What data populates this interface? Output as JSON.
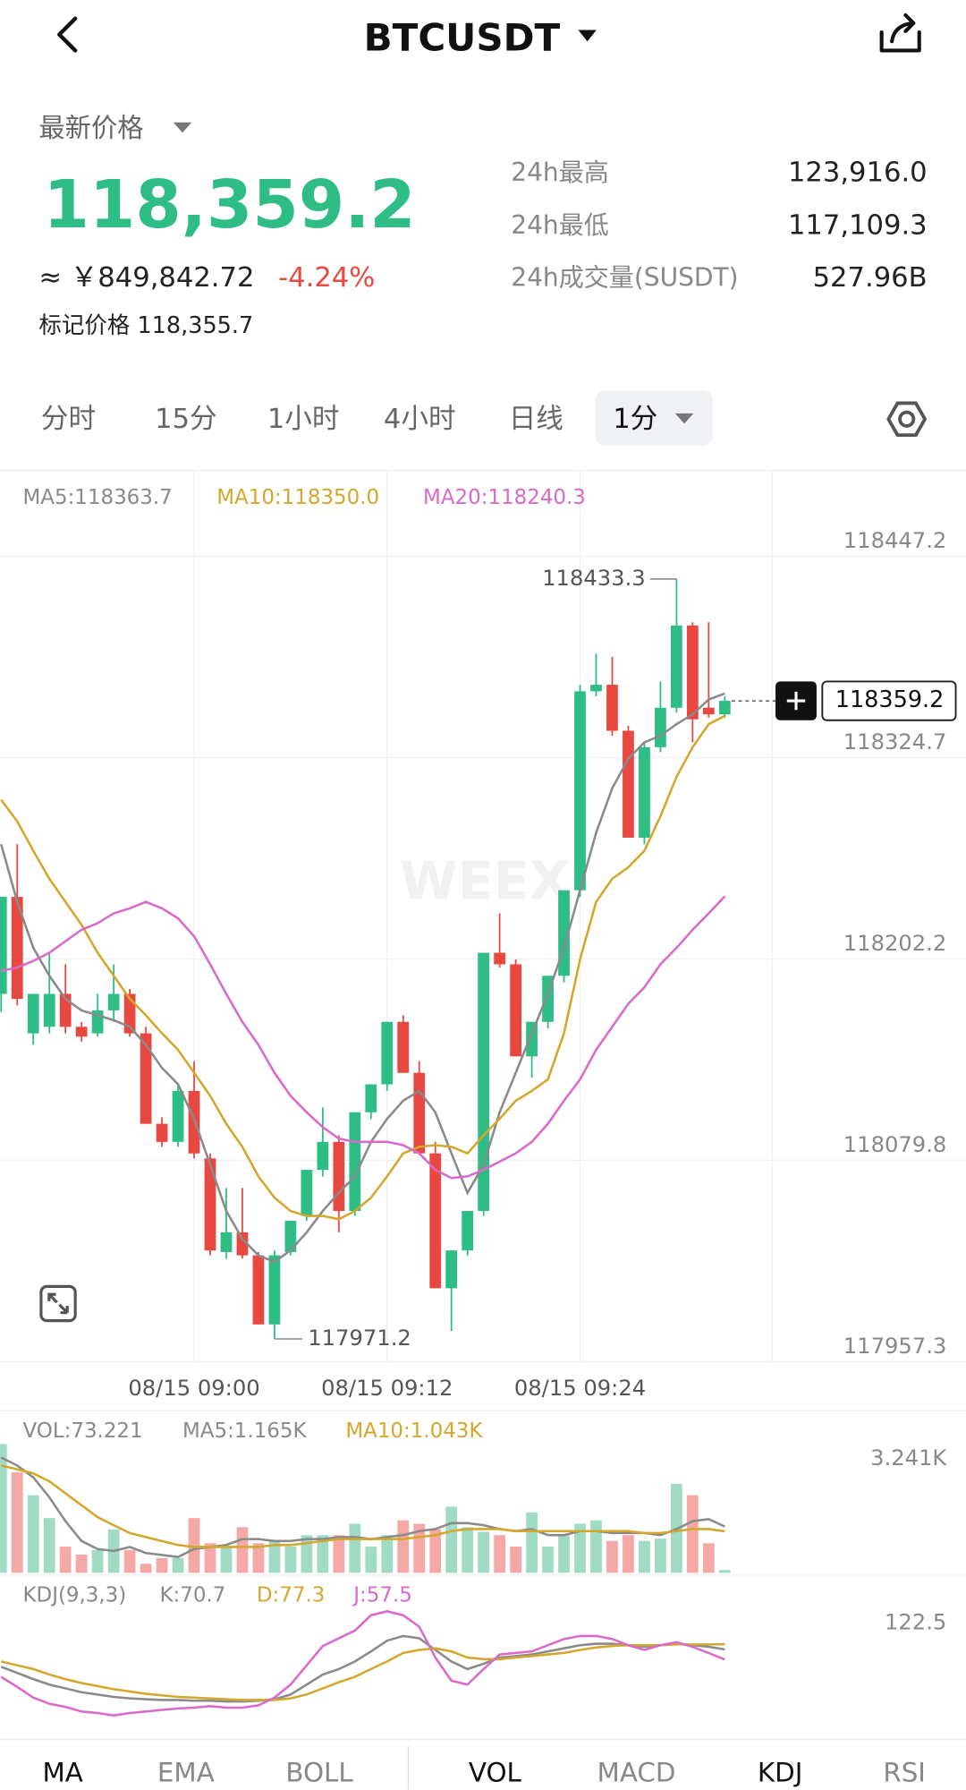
{
  "header": {
    "title": "BTCUSDT"
  },
  "price_info": {
    "label": "最新价格",
    "last": "118,359.2",
    "cny": "≈ ￥849,842.72",
    "change": "-4.24%",
    "mark_price": "标记价格 118,355.7"
  },
  "stats": [
    {
      "label": "24h最高",
      "value": "123,916.0"
    },
    {
      "label": "24h最低",
      "value": "117,109.3"
    },
    {
      "label": "24h成交量(SUSDT)",
      "value": "527.96B"
    }
  ],
  "interval_tabs": [
    "分时",
    "15分",
    "1小时",
    "4小时",
    "日线",
    "1分"
  ],
  "watermark": "WEEX",
  "chart_data": [
    {
      "type": "candlestick",
      "categories": [
        null,
        null,
        null,
        null,
        null,
        null,
        null,
        null,
        null,
        null,
        null,
        null,
        "08/15 09:00",
        null,
        null,
        null,
        null,
        null,
        null,
        null,
        null,
        null,
        null,
        null,
        "08/15 09:12",
        null,
        null,
        null,
        null,
        null,
        null,
        null,
        null,
        null,
        null,
        null,
        "08/15 09:24",
        null,
        null,
        null,
        null,
        null,
        null,
        null,
        null,
        null
      ],
      "open": [
        118181,
        118240,
        118157,
        118161,
        118181,
        118161,
        118157,
        118171,
        118181,
        118157,
        118102,
        118091,
        118122,
        118081,
        118024,
        118036,
        118022,
        117980,
        118024,
        118046,
        118074,
        118091,
        118049,
        118109,
        118126,
        118164,
        118133,
        118084,
        118002,
        118025,
        118049,
        118206,
        118199,
        118143,
        118164,
        118192,
        118244,
        118365,
        118369,
        118341,
        118276,
        118331,
        118355,
        118405,
        118355,
        118351
      ],
      "high": [
        118240,
        118272,
        118181,
        118206,
        118199,
        118164,
        118181,
        118199,
        118184,
        118161,
        118106,
        118126,
        118140,
        118084,
        118063,
        118063,
        118024,
        118025,
        118043,
        118074,
        118112,
        118095,
        118109,
        118126,
        118164,
        118168,
        118140,
        118091,
        118025,
        118049,
        118206,
        118230,
        118202,
        118164,
        118192,
        118244,
        118369,
        118388,
        118386,
        118344,
        118334,
        118371,
        118433.3,
        118407,
        118407,
        118362
      ],
      "low": [
        118170,
        118174,
        118150,
        118157,
        118157,
        118152,
        118155,
        118164,
        118155,
        118102,
        118088,
        118088,
        118081,
        118022,
        118020,
        118020,
        117980,
        117971.2,
        118022,
        118043,
        118070,
        118036,
        118046,
        118105,
        118122,
        118133,
        118084,
        118002,
        117976,
        118022,
        118046,
        118197,
        118143,
        118130,
        118160,
        118188,
        118240,
        118362,
        118338,
        118276,
        118272,
        118328,
        118352,
        118334,
        118349,
        118349
      ],
      "close": [
        118240,
        118178,
        118181,
        118181,
        118161,
        118155,
        118171,
        118181,
        118157,
        118102,
        118091,
        118122,
        118084,
        118025,
        118036,
        118022,
        117980,
        118022,
        118043,
        118074,
        118091,
        118049,
        118109,
        118126,
        118164,
        118133,
        118084,
        118002,
        118025,
        118049,
        118206,
        118199,
        118143,
        118164,
        118192,
        118244,
        118365,
        118369,
        118341,
        118276,
        118331,
        118355,
        118405,
        118348,
        118351,
        118359.2
      ],
      "up_color": "#2ebd85",
      "down_color": "#e8483f",
      "series": [
        {
          "label": "MA5:118363.7",
          "color": "#8a8a8a",
          "values": [
            118272,
            118237,
            118209,
            118192,
            118178,
            118171,
            118168,
            118165,
            118161,
            118150,
            118136,
            118126,
            118105,
            118077,
            118049,
            118032,
            118022,
            118018,
            118025,
            118036,
            118049,
            118060,
            118070,
            118091,
            118105,
            118116,
            118122,
            118109,
            118084,
            118060,
            118077,
            118109,
            118133,
            118157,
            118181,
            118209,
            118244,
            118279,
            118306,
            118324,
            118334,
            118338,
            118345,
            118351,
            118360,
            118363.7
          ]
        },
        {
          "label": "MA10:118350.0",
          "color": "#d4a72c",
          "values": [
            118299,
            118286,
            118268,
            118251,
            118237,
            118223,
            118206,
            118192,
            118178,
            118168,
            118157,
            118147,
            118133,
            118119,
            118102,
            118088,
            118070,
            118057,
            118049,
            118046,
            118046,
            118044,
            118049,
            118057,
            118070,
            118084,
            118088,
            118089,
            118088,
            118084,
            118095,
            118105,
            118116,
            118122,
            118129,
            118157,
            118202,
            118237,
            118251,
            118258,
            118268,
            118289,
            118313,
            118331,
            118345,
            118350.0
          ]
        },
        {
          "label": "MA20:118240.3",
          "color": "#d96acb",
          "values": [
            118195,
            118197,
            118201,
            118206,
            118213,
            118220,
            118224,
            118230,
            118233,
            118237,
            118233,
            118227,
            118216,
            118199,
            118181,
            118164,
            118150,
            118133,
            118119,
            118109,
            118100,
            118093,
            118091,
            118091,
            118091,
            118089,
            118084,
            118074,
            118069,
            118070,
            118074,
            118079,
            118084,
            118091,
            118102,
            118116,
            118129,
            118147,
            118161,
            118175,
            118185,
            118199,
            118209,
            118220,
            118230,
            118240.3
          ]
        }
      ],
      "ylim": [
        117957.3,
        118499.3
      ],
      "yticks": [
        117957.3,
        118079.8,
        118202.2,
        118324.7,
        118447.2
      ],
      "grid": true
    },
    {
      "type": "bar",
      "values": [
        3241,
        2526,
        1952,
        1378,
        660,
        459,
        574,
        1091,
        574,
        230,
        373,
        373,
        1378,
        746,
        660,
        1148,
        746,
        804,
        660,
        947,
        947,
        947,
        1234,
        660,
        947,
        1320,
        1234,
        1091,
        1665,
        1148,
        1033,
        947,
        660,
        1521,
        660,
        947,
        1234,
        1320,
        804,
        947,
        804,
        861,
        2239,
        1952,
        746,
        73.221
      ],
      "up_color": "#9fdcc3",
      "down_color": "#f4a9a6",
      "legend": "VOL:73.221",
      "series": [
        {
          "label": "MA5:1.165K",
          "color": "#8a8a8a",
          "values": [
            2900,
            2700,
            2400,
            1900,
            1300,
            800,
            600,
            550,
            650,
            500,
            450,
            400,
            600,
            650,
            700,
            850,
            850,
            800,
            800,
            850,
            850,
            900,
            900,
            850,
            900,
            950,
            1050,
            1100,
            1250,
            1250,
            1200,
            1100,
            1050,
            1100,
            950,
            950,
            1050,
            1050,
            1000,
            1000,
            1000,
            950,
            1100,
            1300,
            1350,
            1165
          ]
        },
        {
          "label": "MA10:1.043K",
          "color": "#d4a72c",
          "values": [
            2700,
            2600,
            2500,
            2300,
            2000,
            1700,
            1400,
            1200,
            1000,
            900,
            800,
            700,
            650,
            650,
            650,
            650,
            650,
            700,
            700,
            750,
            800,
            850,
            850,
            850,
            850,
            850,
            900,
            950,
            1050,
            1100,
            1100,
            1100,
            1050,
            1050,
            1050,
            1050,
            1050,
            1050,
            1050,
            1050,
            1000,
            1000,
            1050,
            1100,
            1100,
            1043
          ]
        }
      ],
      "ylim": [
        0,
        3241
      ],
      "yticks": [
        {
          "value": 3241,
          "label": "3.241K"
        }
      ]
    },
    {
      "type": "line",
      "legend": "KDJ(9,3,3)",
      "series": [
        {
          "label": "K:70.7",
          "color": "#8a8a8a",
          "values": [
            48,
            40,
            32,
            25,
            20,
            15,
            12,
            9,
            7,
            6,
            5,
            5,
            4,
            4,
            3,
            3,
            4,
            6,
            12,
            25,
            38,
            45,
            55,
            68,
            82,
            88,
            85,
            70,
            55,
            45,
            52,
            60,
            62,
            64,
            68,
            72,
            76,
            78,
            78,
            76,
            74,
            76,
            78,
            76,
            74,
            70.7
          ]
        },
        {
          "label": "D:77.3",
          "color": "#d4a72c",
          "values": [
            55,
            50,
            45,
            38,
            32,
            27,
            23,
            19,
            16,
            13,
            11,
            9,
            8,
            7,
            6,
            5,
            5,
            5,
            7,
            12,
            20,
            28,
            35,
            45,
            55,
            66,
            70,
            72,
            68,
            60,
            58,
            58,
            60,
            62,
            64,
            66,
            70,
            73,
            75,
            76,
            76,
            76,
            77,
            77,
            77,
            77.3
          ]
        },
        {
          "label": "J:57.5",
          "color": "#d96acb",
          "values": [
            35,
            22,
            8,
            0,
            -4,
            -10,
            -12,
            -15,
            -12,
            -10,
            -8,
            -6,
            -5,
            -3,
            -5,
            -5,
            -2,
            8,
            25,
            50,
            75,
            85,
            95,
            115,
            120,
            115,
            100,
            60,
            30,
            25,
            45,
            64,
            66,
            68,
            76,
            84,
            88,
            88,
            84,
            76,
            70,
            76,
            80,
            74,
            66,
            57.5
          ]
        }
      ],
      "ylim": [
        -30,
        122.5
      ],
      "yticks": [
        122.5
      ]
    }
  ],
  "indicator_tabs": [
    "MA",
    "EMA",
    "BOLL",
    "VOL",
    "MACD",
    "KDJ",
    "RSI"
  ]
}
